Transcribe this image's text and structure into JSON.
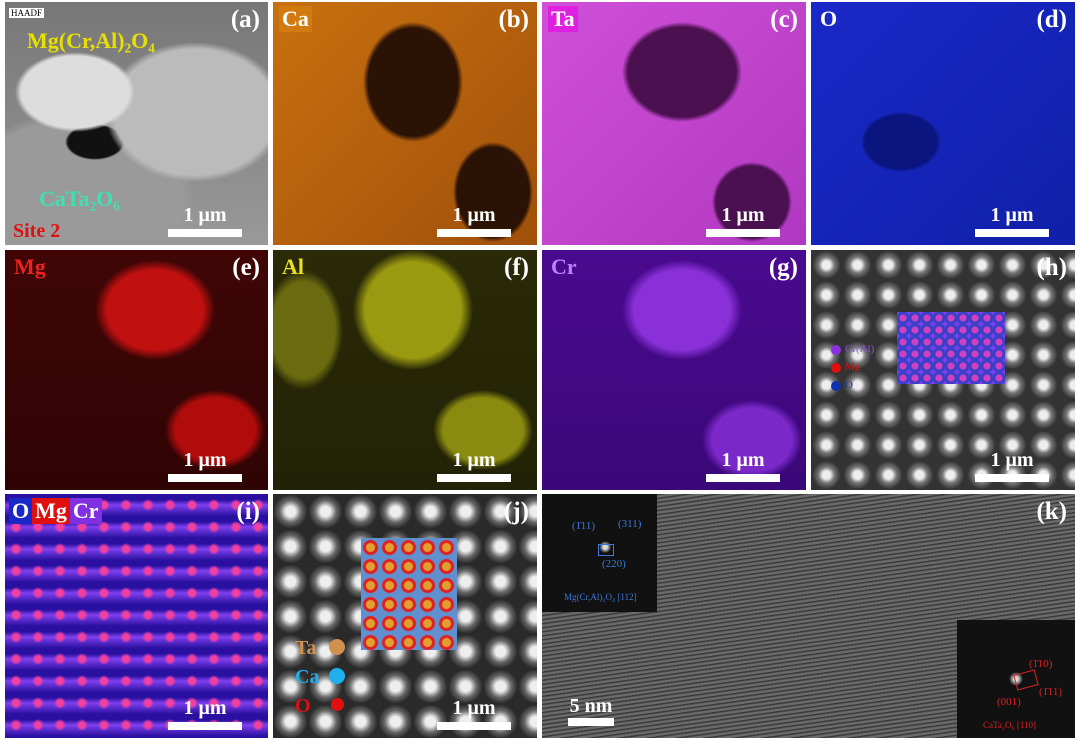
{
  "panels": {
    "a": {
      "label": "(a)",
      "mode": "HAADF",
      "phase1": "Mg(Cr,Al)₂O₄",
      "phase2": "CaTa₂O₆",
      "site": "Site 2",
      "scale_bar": "1 μm"
    },
    "b": {
      "label": "(b)",
      "element": "Ca",
      "scale_bar": "1 μm"
    },
    "c": {
      "label": "(c)",
      "element": "Ta",
      "scale_bar": "1 μm"
    },
    "d": {
      "label": "(d)",
      "element": "O",
      "scale_bar": "1 μm"
    },
    "e": {
      "label": "(e)",
      "element": "Mg",
      "scale_bar": "1 μm"
    },
    "f": {
      "label": "(f)",
      "element": "Al",
      "scale_bar": "1 μm"
    },
    "g": {
      "label": "(g)",
      "element": "Cr",
      "scale_bar": "1 μm"
    },
    "h": {
      "label": "(h)",
      "legend": [
        "Cr(Al)",
        "Mg",
        "O"
      ],
      "scale_bar": "1 μm"
    },
    "i": {
      "label": "(i)",
      "elements": [
        "O",
        "Mg",
        "Cr"
      ],
      "scale_bar": "1 μm"
    },
    "j": {
      "label": "(j)",
      "legend": [
        "Ta",
        "Ca",
        "O"
      ],
      "scale_bar": "1 μm"
    },
    "k": {
      "label": "(k)",
      "scale_bar": "5 nm",
      "inset1": {
        "spots": [
          "(1̄11)",
          "(311)",
          "(220)"
        ],
        "caption": "Mg(Cr,Al)₂O₄ [112]"
      },
      "inset2": {
        "spots": [
          "(1̄10)",
          "(1̄11)",
          "(001)"
        ],
        "caption": "CaTa₂O₆ [110]"
      }
    }
  }
}
